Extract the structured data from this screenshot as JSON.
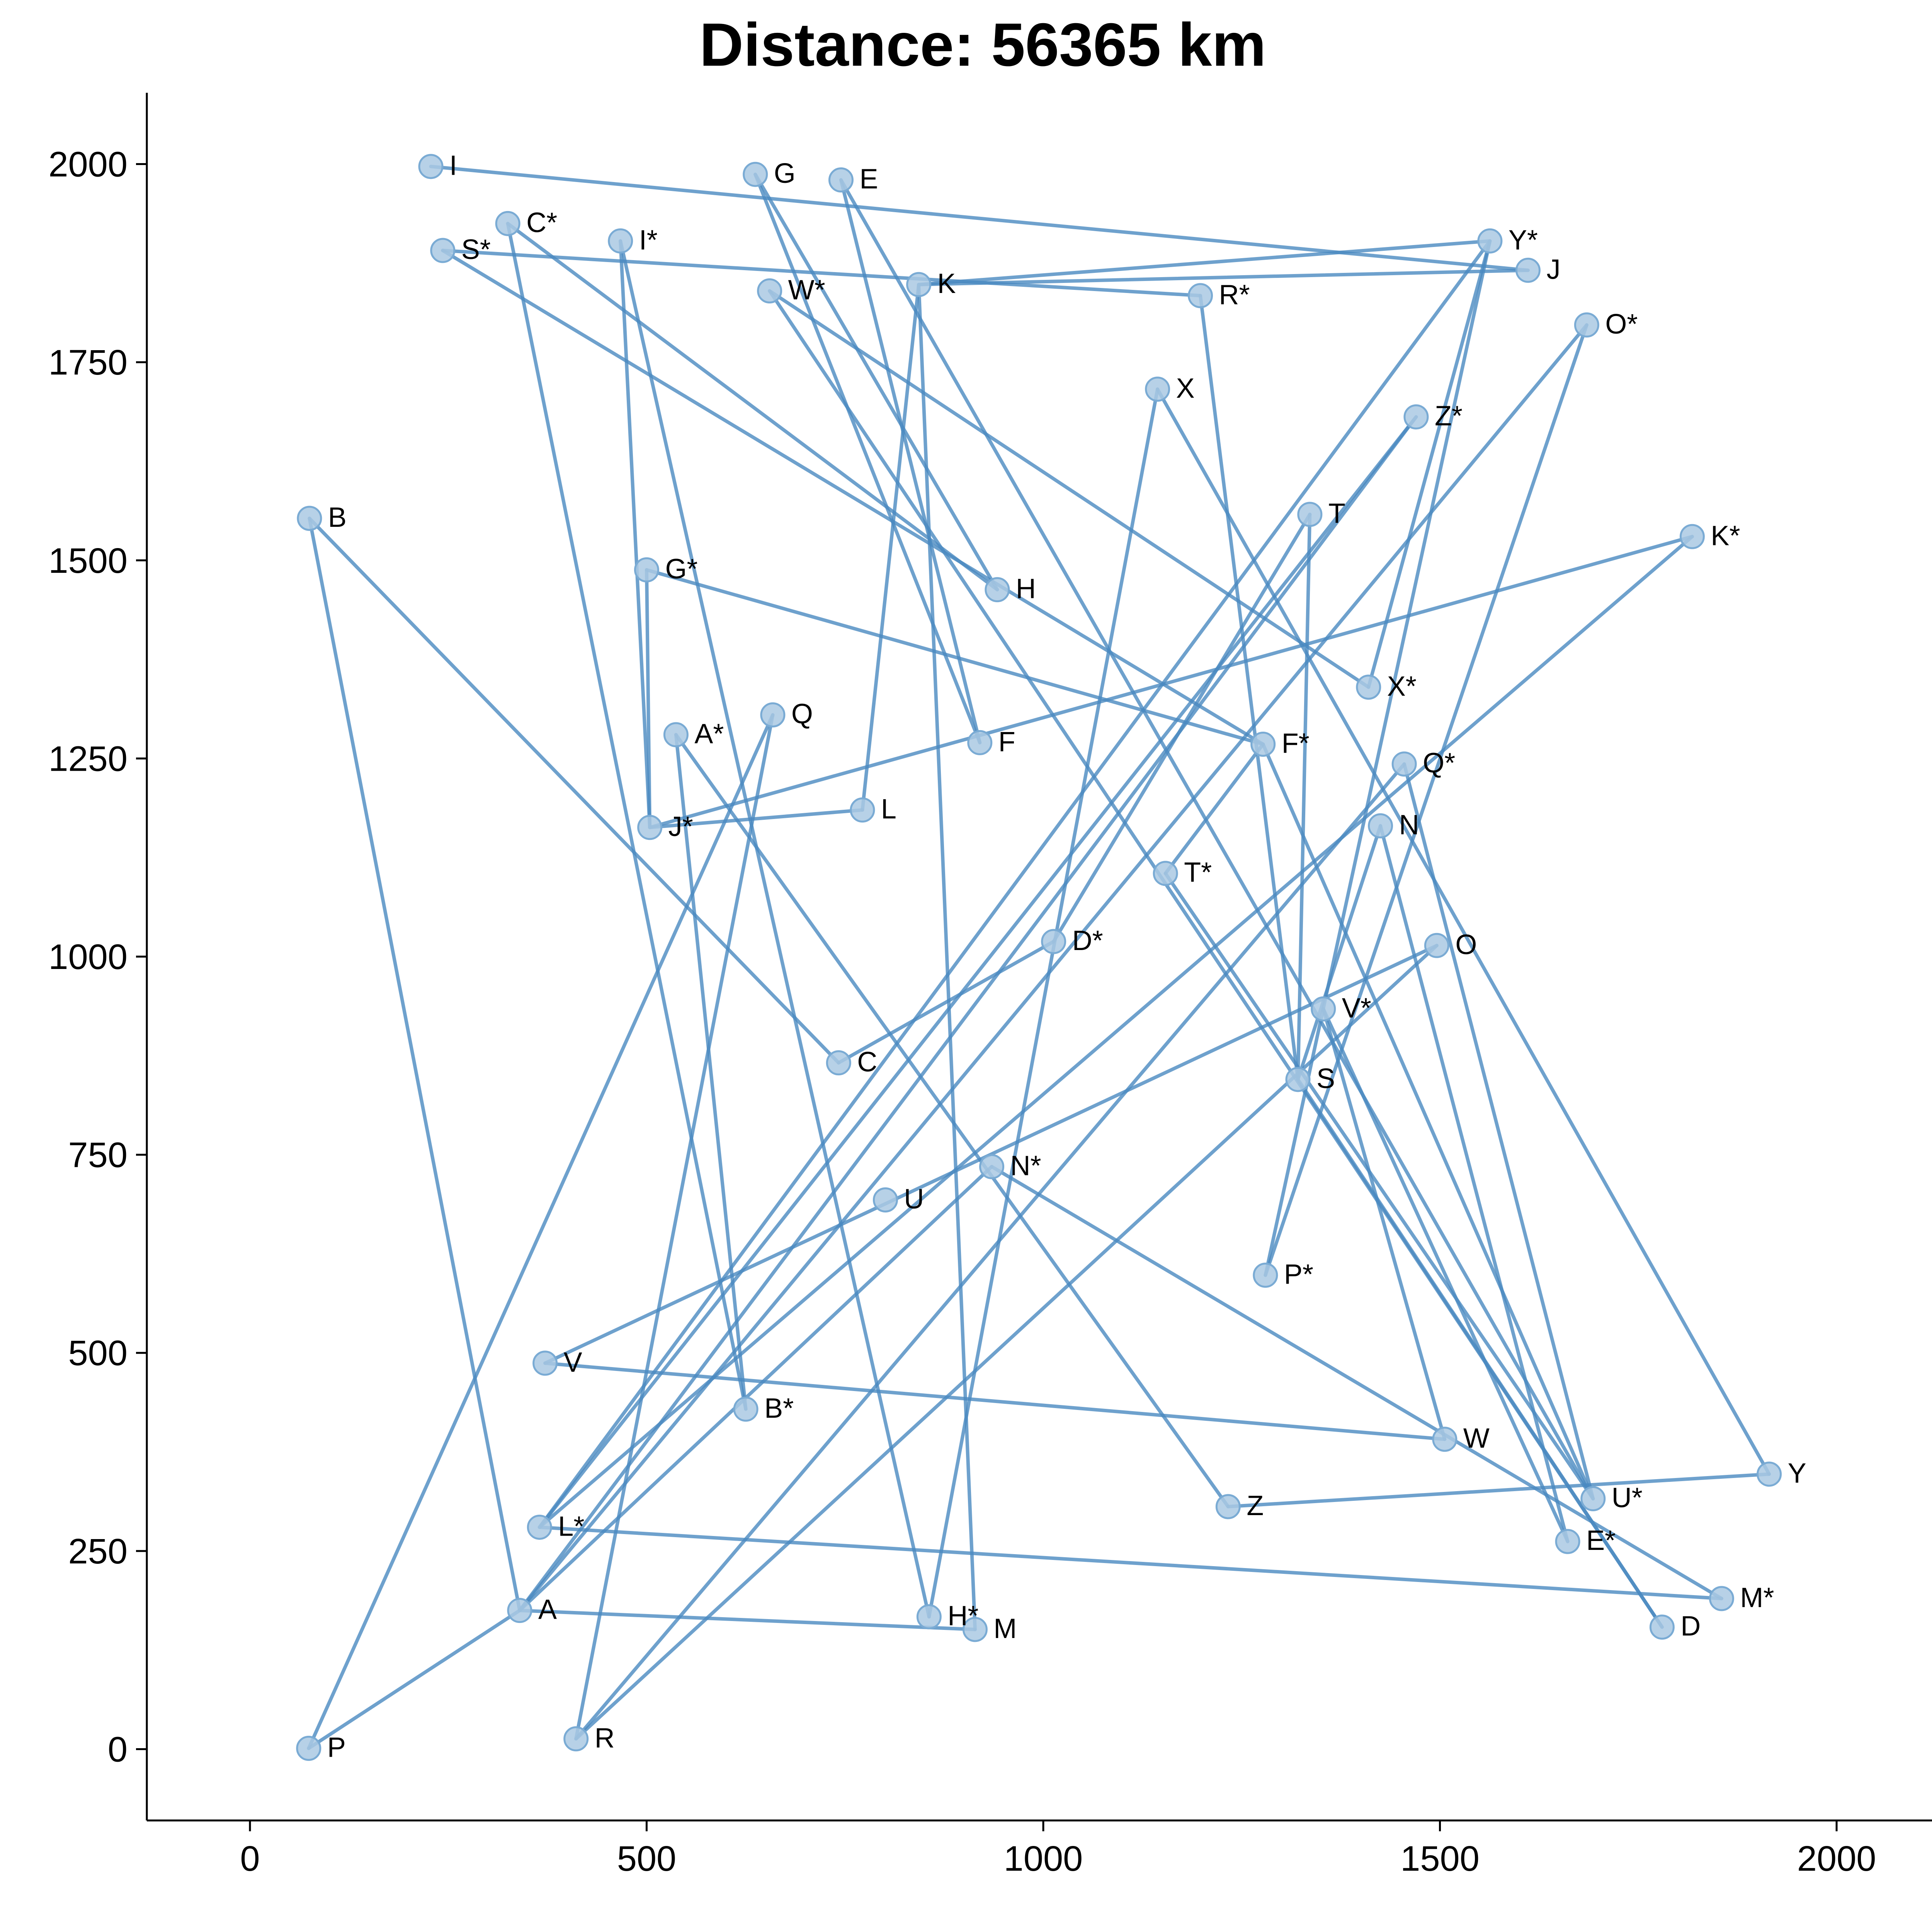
{
  "chart_data": {
    "type": "line",
    "title": "Distance: 56365 km",
    "xlabel": "",
    "ylabel": "",
    "xlim": [
      -130,
      2130
    ],
    "ylim": [
      -90,
      2090
    ],
    "x_ticks": [
      0,
      500,
      1000,
      1500,
      2000
    ],
    "y_ticks": [
      0,
      250,
      500,
      750,
      1000,
      1250,
      1500,
      1750,
      2000
    ],
    "grid": false,
    "legend": "none",
    "colors": {
      "route": "#4a8ac0",
      "marker_fill": "#aac9e3",
      "marker_edge": "#7aabd4",
      "axis": "#000000"
    },
    "cities": [
      {
        "name": "A",
        "x": 340,
        "y": 175
      },
      {
        "name": "B",
        "x": 75,
        "y": 1553
      },
      {
        "name": "C",
        "x": 742,
        "y": 866
      },
      {
        "name": "D",
        "x": 1780,
        "y": 154
      },
      {
        "name": "E",
        "x": 745,
        "y": 1980
      },
      {
        "name": "F",
        "x": 920,
        "y": 1270
      },
      {
        "name": "G",
        "x": 637,
        "y": 1987
      },
      {
        "name": "H",
        "x": 942,
        "y": 1463
      },
      {
        "name": "I",
        "x": 228,
        "y": 1997
      },
      {
        "name": "J",
        "x": 1611,
        "y": 1866
      },
      {
        "name": "K",
        "x": 843,
        "y": 1848
      },
      {
        "name": "L",
        "x": 772,
        "y": 1185
      },
      {
        "name": "M",
        "x": 914,
        "y": 151
      },
      {
        "name": "N",
        "x": 1425,
        "y": 1165
      },
      {
        "name": "O",
        "x": 1496,
        "y": 1014
      },
      {
        "name": "P",
        "x": 74,
        "y": 1
      },
      {
        "name": "Q",
        "x": 659,
        "y": 1305
      },
      {
        "name": "R",
        "x": 411,
        "y": 13
      },
      {
        "name": "S",
        "x": 1321,
        "y": 845
      },
      {
        "name": "T",
        "x": 1336,
        "y": 1558
      },
      {
        "name": "U",
        "x": 801,
        "y": 693
      },
      {
        "name": "V",
        "x": 372,
        "y": 487
      },
      {
        "name": "W",
        "x": 1506,
        "y": 391
      },
      {
        "name": "X",
        "x": 1144,
        "y": 1716
      },
      {
        "name": "Y",
        "x": 1915,
        "y": 347
      },
      {
        "name": "Z",
        "x": 1233,
        "y": 306
      },
      {
        "name": "A*",
        "x": 537,
        "y": 1280
      },
      {
        "name": "B*",
        "x": 625,
        "y": 429
      },
      {
        "name": "C*",
        "x": 325,
        "y": 1925
      },
      {
        "name": "D*",
        "x": 1013,
        "y": 1019
      },
      {
        "name": "E*",
        "x": 1661,
        "y": 262
      },
      {
        "name": "F*",
        "x": 1277,
        "y": 1268
      },
      {
        "name": "G*",
        "x": 500,
        "y": 1488
      },
      {
        "name": "H*",
        "x": 856,
        "y": 167
      },
      {
        "name": "I*",
        "x": 467,
        "y": 1903
      },
      {
        "name": "J*",
        "x": 504,
        "y": 1163
      },
      {
        "name": "K*",
        "x": 1818,
        "y": 1530
      },
      {
        "name": "L*",
        "x": 365,
        "y": 280
      },
      {
        "name": "M*",
        "x": 1855,
        "y": 190
      },
      {
        "name": "N*",
        "x": 935,
        "y": 735
      },
      {
        "name": "O*",
        "x": 1685,
        "y": 1797
      },
      {
        "name": "P*",
        "x": 1280,
        "y": 598
      },
      {
        "name": "Q*",
        "x": 1455,
        "y": 1243
      },
      {
        "name": "R*",
        "x": 1198,
        "y": 1834
      },
      {
        "name": "S*",
        "x": 243,
        "y": 1891
      },
      {
        "name": "T*",
        "x": 1154,
        "y": 1105
      },
      {
        "name": "U*",
        "x": 1693,
        "y": 316
      },
      {
        "name": "V*",
        "x": 1353,
        "y": 934
      },
      {
        "name": "W*",
        "x": 655,
        "y": 1840
      },
      {
        "name": "X*",
        "x": 1410,
        "y": 1340
      },
      {
        "name": "Y*",
        "x": 1563,
        "y": 1903
      },
      {
        "name": "Z*",
        "x": 1470,
        "y": 1681
      }
    ],
    "route": [
      "I",
      "J",
      "K",
      "M",
      "A",
      "Z*",
      "L*",
      "Y*",
      "P*",
      "O*",
      "A",
      "P",
      "Q",
      "R",
      "O",
      "V",
      "W",
      "V*",
      "E*",
      "N",
      "S",
      "T",
      "D*",
      "C",
      "B",
      "A",
      "N*",
      "M*",
      "L*",
      "K*",
      "J*",
      "G*",
      "F*",
      "U*",
      "E",
      "F",
      "G",
      "H",
      "C*",
      "B*",
      "A*",
      "Z",
      "Y",
      "X",
      "H*",
      "I*",
      "J*",
      "L",
      "K",
      "Y*",
      "X*",
      "W*",
      "D",
      "S",
      "R*",
      "S*",
      "F*",
      "T*",
      "U*",
      "Q*",
      "R"
    ]
  }
}
